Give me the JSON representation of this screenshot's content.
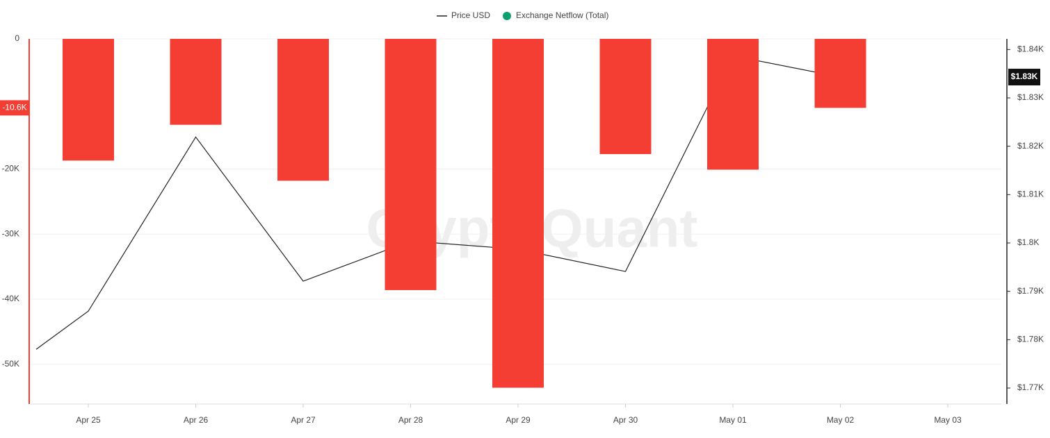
{
  "chart_data": {
    "type": "bar_line",
    "watermark": "CryptoQuant",
    "categories": [
      null,
      "Apr 25",
      "Apr 26",
      "Apr 27",
      "Apr 28",
      "Apr 29",
      "Apr 30",
      "May 01",
      "May 02",
      "May 03"
    ],
    "series": [
      {
        "name": "Price USD",
        "type": "line",
        "axis": "y2",
        "color": "#222222",
        "values": [
          1778,
          1785.9,
          1821.9,
          1792.1,
          1800.4,
          1798.7,
          1794.1,
          1838.7,
          1834.3,
          null
        ]
      },
      {
        "name": "Exchange Netflow (Total)",
        "type": "bar",
        "color": "#0e9f6e",
        "negative_color": "#f43e34",
        "values": [
          null,
          -18700,
          -13200,
          -21800,
          -38600,
          -53600,
          -17700,
          -20100,
          -10600,
          null
        ]
      }
    ],
    "ylim": [
      0,
      -56100
    ],
    "yticks": [
      0,
      {
        "value": -20000,
        "label": "-20K"
      },
      {
        "value": -30000,
        "label": "-30K"
      },
      {
        "value": -40000,
        "label": "-40K"
      },
      {
        "value": -50000,
        "label": "-50K"
      }
    ],
    "y2lim": [
      1842.2,
      1766.7
    ],
    "y2ticks": [
      {
        "value": 1840,
        "label": "$1.84K"
      },
      {
        "value": 1830,
        "label": "$1.83K"
      },
      {
        "value": 1820,
        "label": "$1.82K"
      },
      {
        "value": 1810,
        "label": "$1.81K"
      },
      {
        "value": 1800,
        "label": "$1.8K"
      },
      {
        "value": 1790,
        "label": "$1.79K"
      },
      {
        "value": 1780,
        "label": "$1.78K"
      },
      {
        "value": 1770,
        "label": "$1.77K"
      }
    ],
    "y_marker": {
      "value": -10600,
      "label": "-10.6K"
    },
    "y2_marker": {
      "value": 1834.3,
      "label": "$1.83K"
    },
    "grid": true
  }
}
